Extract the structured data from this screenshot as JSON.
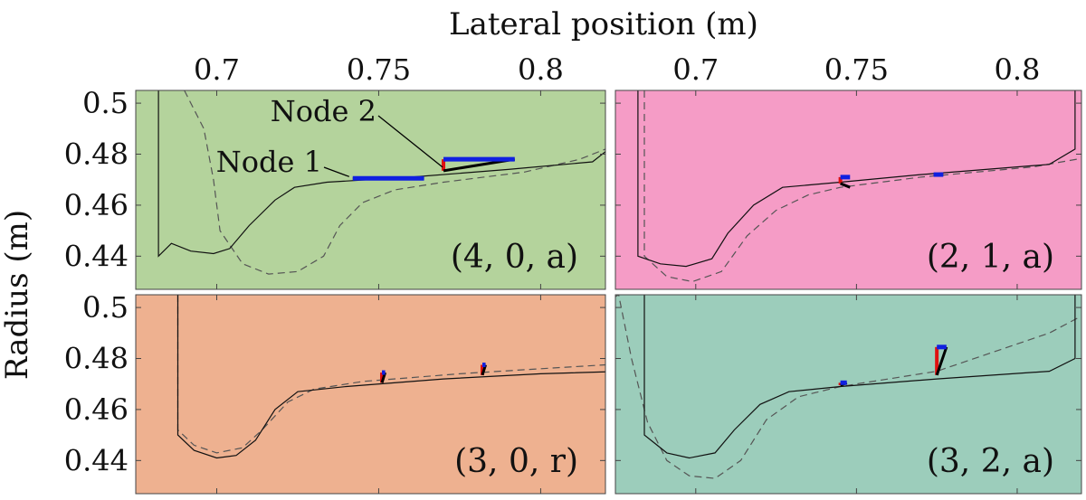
{
  "figure": {
    "xlabel": "Lateral position (m)",
    "ylabel": "Radius (m)"
  },
  "chart_data": {
    "type": "line",
    "xlabel": "Lateral position (m)",
    "ylabel": "Radius (m)",
    "xlim": [
      0.675,
      0.82
    ],
    "ylim": [
      0.427,
      0.505
    ],
    "x_ticks": [
      0.7,
      0.75,
      0.8
    ],
    "y_ticks": [
      0.44,
      0.46,
      0.48,
      0.5
    ],
    "x_tick_labels": [
      "0.7",
      "0.75",
      "0.8"
    ],
    "y_tick_labels": [
      "0.44",
      "0.46",
      "0.48",
      "0.5"
    ],
    "grid": false,
    "node_labels": [
      "Node 1",
      "Node 2"
    ],
    "panels": [
      {
        "label": "(4, 0, a)",
        "bg": "#b4d39c",
        "solid": [
          [
            0.682,
            0.505
          ],
          [
            0.682,
            0.44
          ],
          [
            0.686,
            0.445
          ],
          [
            0.692,
            0.442
          ],
          [
            0.699,
            0.441
          ],
          [
            0.704,
            0.443
          ],
          [
            0.71,
            0.452
          ],
          [
            0.718,
            0.462
          ],
          [
            0.724,
            0.467
          ],
          [
            0.734,
            0.469
          ],
          [
            0.76,
            0.471
          ],
          [
            0.79,
            0.474
          ],
          [
            0.816,
            0.477
          ],
          [
            0.821,
            0.482
          ],
          [
            0.821,
            0.505
          ]
        ],
        "dashed": [
          [
            0.69,
            0.505
          ],
          [
            0.696,
            0.49
          ],
          [
            0.699,
            0.47
          ],
          [
            0.701,
            0.45
          ],
          [
            0.708,
            0.437
          ],
          [
            0.716,
            0.433
          ],
          [
            0.725,
            0.434
          ],
          [
            0.733,
            0.44
          ],
          [
            0.738,
            0.452
          ],
          [
            0.745,
            0.461
          ],
          [
            0.755,
            0.466
          ],
          [
            0.77,
            0.469
          ],
          [
            0.795,
            0.473
          ],
          [
            0.812,
            0.478
          ],
          [
            0.83,
            0.487
          ],
          [
            0.834,
            0.496
          ],
          [
            0.834,
            0.505
          ]
        ],
        "nodes": [
          {
            "x": 0.742,
            "y": 0.4705,
            "dx": 0.022,
            "dy": 0.0,
            "rdy": 0.0
          },
          {
            "x": 0.77,
            "y": 0.4735,
            "dx": 0.022,
            "dy": 0.0045,
            "rdy": 0.0045
          }
        ]
      },
      {
        "label": "(2, 1, a)",
        "bg": "#f59cc6",
        "solid": [
          [
            0.682,
            0.505
          ],
          [
            0.682,
            0.44
          ],
          [
            0.689,
            0.437
          ],
          [
            0.697,
            0.436
          ],
          [
            0.705,
            0.439
          ],
          [
            0.71,
            0.449
          ],
          [
            0.718,
            0.46
          ],
          [
            0.727,
            0.467
          ],
          [
            0.745,
            0.469
          ],
          [
            0.77,
            0.472
          ],
          [
            0.81,
            0.476
          ],
          [
            0.818,
            0.482
          ],
          [
            0.818,
            0.505
          ]
        ],
        "dashed": [
          [
            0.684,
            0.505
          ],
          [
            0.684,
            0.44
          ],
          [
            0.691,
            0.432
          ],
          [
            0.699,
            0.43
          ],
          [
            0.708,
            0.434
          ],
          [
            0.716,
            0.448
          ],
          [
            0.725,
            0.458
          ],
          [
            0.735,
            0.464
          ],
          [
            0.745,
            0.467
          ],
          [
            0.77,
            0.471
          ],
          [
            0.805,
            0.475
          ],
          [
            0.823,
            0.479
          ],
          [
            0.828,
            0.486
          ],
          [
            0.825,
            0.498
          ],
          [
            0.825,
            0.505
          ]
        ],
        "nodes": [
          {
            "x": 0.745,
            "y": 0.4685,
            "dx": 0.003,
            "dy": -0.0015,
            "rdy": 0.0025
          },
          {
            "x": 0.774,
            "y": 0.472,
            "dx": 0.003,
            "dy": 0.0,
            "rdy": 0.0
          }
        ]
      },
      {
        "label": "(3, 0, r)",
        "bg": "#eeb190",
        "solid": [
          [
            0.688,
            0.505
          ],
          [
            0.688,
            0.45
          ],
          [
            0.693,
            0.444
          ],
          [
            0.7,
            0.441
          ],
          [
            0.706,
            0.442
          ],
          [
            0.712,
            0.448
          ],
          [
            0.718,
            0.46
          ],
          [
            0.725,
            0.467
          ],
          [
            0.74,
            0.469
          ],
          [
            0.77,
            0.472
          ],
          [
            0.8,
            0.474
          ],
          [
            0.826,
            0.475
          ],
          [
            0.829,
            0.48
          ],
          [
            0.829,
            0.505
          ]
        ],
        "dashed": [
          [
            0.688,
            0.505
          ],
          [
            0.688,
            0.452
          ],
          [
            0.693,
            0.446
          ],
          [
            0.7,
            0.443
          ],
          [
            0.708,
            0.445
          ],
          [
            0.714,
            0.452
          ],
          [
            0.722,
            0.463
          ],
          [
            0.73,
            0.468
          ],
          [
            0.745,
            0.471
          ],
          [
            0.775,
            0.474
          ],
          [
            0.8,
            0.476
          ],
          [
            0.826,
            0.478
          ],
          [
            0.83,
            0.482
          ],
          [
            0.831,
            0.488
          ],
          [
            0.831,
            0.505
          ]
        ],
        "nodes": [
          {
            "x": 0.751,
            "y": 0.4705,
            "dx": 0.001,
            "dy": 0.004,
            "rdy": 0.004
          },
          {
            "x": 0.782,
            "y": 0.4735,
            "dx": 0.001,
            "dy": 0.004,
            "rdy": 0.004
          }
        ]
      },
      {
        "label": "(3, 2, a)",
        "bg": "#9ccdbb",
        "solid": [
          [
            0.684,
            0.505
          ],
          [
            0.684,
            0.45
          ],
          [
            0.691,
            0.443
          ],
          [
            0.698,
            0.441
          ],
          [
            0.706,
            0.443
          ],
          [
            0.712,
            0.452
          ],
          [
            0.72,
            0.462
          ],
          [
            0.729,
            0.467
          ],
          [
            0.745,
            0.469
          ],
          [
            0.775,
            0.472
          ],
          [
            0.81,
            0.475
          ],
          [
            0.818,
            0.48
          ],
          [
            0.818,
            0.505
          ]
        ],
        "dashed": [
          [
            0.665,
            0.497
          ],
          [
            0.676,
            0.505
          ],
          [
            0.68,
            0.48
          ],
          [
            0.685,
            0.455
          ],
          [
            0.691,
            0.44
          ],
          [
            0.698,
            0.434
          ],
          [
            0.706,
            0.433
          ],
          [
            0.714,
            0.44
          ],
          [
            0.722,
            0.456
          ],
          [
            0.732,
            0.465
          ],
          [
            0.745,
            0.469
          ],
          [
            0.775,
            0.475
          ],
          [
            0.81,
            0.49
          ],
          [
            0.825,
            0.5
          ],
          [
            0.826,
            0.505
          ]
        ],
        "nodes": [
          {
            "x": 0.745,
            "y": 0.4695,
            "dx": 0.002,
            "dy": 0.001,
            "rdy": 0.001
          },
          {
            "x": 0.775,
            "y": 0.4735,
            "dx": 0.003,
            "dy": 0.011,
            "rdy": 0.011
          }
        ]
      }
    ]
  }
}
